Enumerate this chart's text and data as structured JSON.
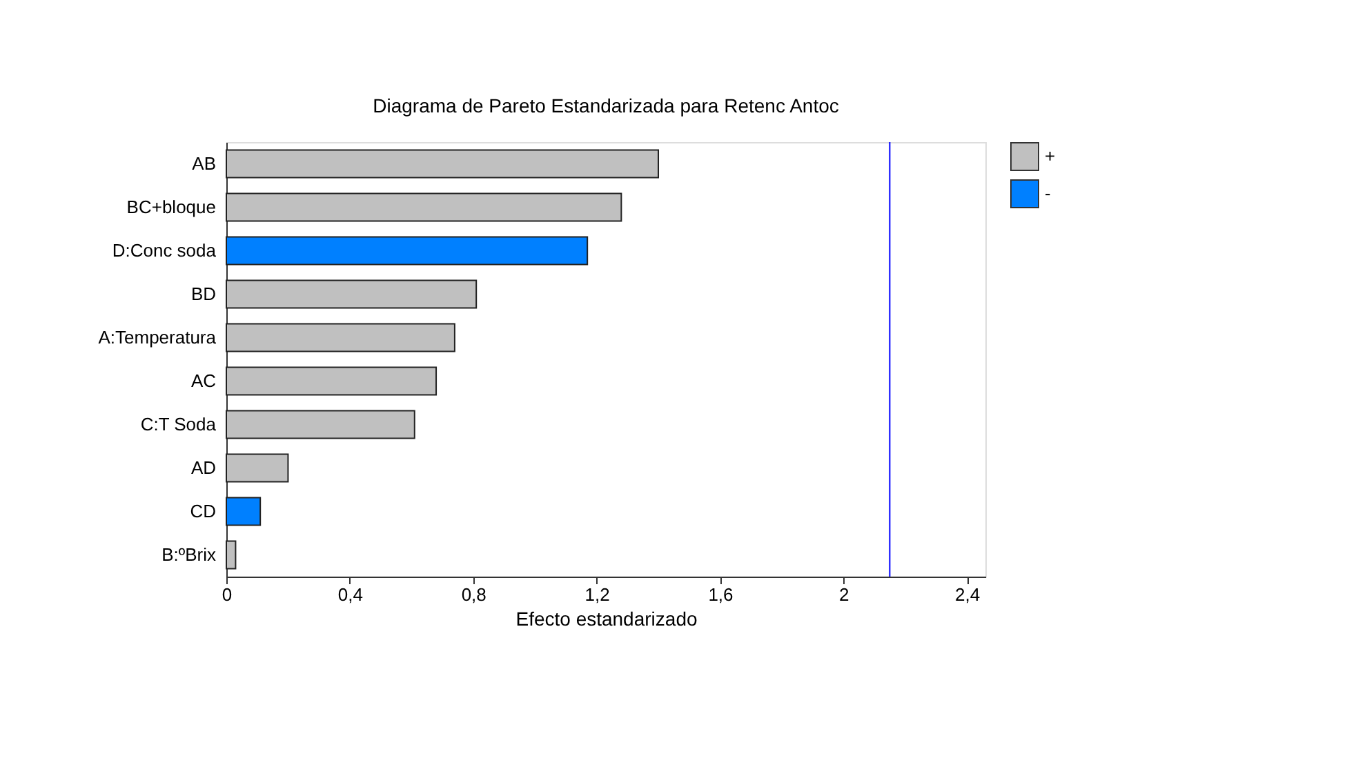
{
  "chart_data": {
    "type": "bar",
    "orientation": "horizontal",
    "title": "Diagrama de Pareto Estandarizada para Retenc Antoc",
    "xlabel": "Efecto estandarizado",
    "categories": [
      "AB",
      "BC+bloque",
      "D:Conc soda",
      "BD",
      "A:Temperatura",
      "AC",
      "C:T Soda",
      "AD",
      "CD",
      "B:ºBrix"
    ],
    "series": [
      {
        "name": "+",
        "color": "#c0c0c0",
        "values": [
          1.4,
          1.28,
          null,
          0.81,
          0.74,
          0.68,
          0.61,
          0.2,
          null,
          0.03
        ]
      },
      {
        "name": "-",
        "color": "#0080ff",
        "values": [
          null,
          null,
          1.17,
          null,
          null,
          null,
          null,
          null,
          0.11,
          null
        ]
      }
    ],
    "xlim": [
      0,
      2.46
    ],
    "xticks": [
      0,
      {
        "value": 0.4,
        "label": "0,4"
      },
      {
        "value": 0.8,
        "label": "0,8"
      },
      {
        "value": 1.2,
        "label": "1,2"
      },
      {
        "value": 1.6,
        "label": "1,6"
      },
      2,
      {
        "value": 2.4,
        "label": "2,4"
      }
    ],
    "ref_lines": [
      {
        "axis": "x",
        "value": 2.15,
        "color": "#0000ff"
      }
    ],
    "grid": false,
    "legend": "top right"
  }
}
